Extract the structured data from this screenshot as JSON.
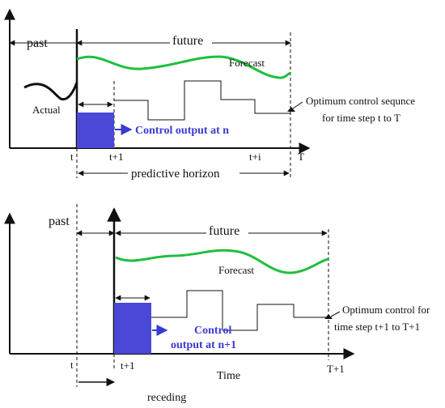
{
  "colors": {
    "axis": "#111111",
    "forecast": "#1fbf3f",
    "actual": "#111111",
    "control_block": "#4a48d6",
    "control_text": "#3a3acf"
  },
  "top": {
    "past": "past",
    "future": "future",
    "forecast": "Forecast",
    "actual": "Actual",
    "control_output": "Control output at n",
    "optimum_line1": "Optimum control sequnce",
    "optimum_line2": "for time step t  to T",
    "tick_t": "t",
    "tick_t1": "t+1",
    "tick_ti": "t+i",
    "tick_T": "T",
    "horizon": "predictive horizon"
  },
  "bottom": {
    "past": "past",
    "future": "future",
    "forecast": "Forecast",
    "control_output_line1": "Control",
    "control_output_line2": "output at n+1",
    "optimum_line1": "Optimum control for",
    "optimum_line2": "time step t+1 to T+1",
    "tick_t": "t",
    "tick_t1": "t+1",
    "tick_T1": "T+1",
    "xlabel": "Time",
    "receding": "receding"
  }
}
